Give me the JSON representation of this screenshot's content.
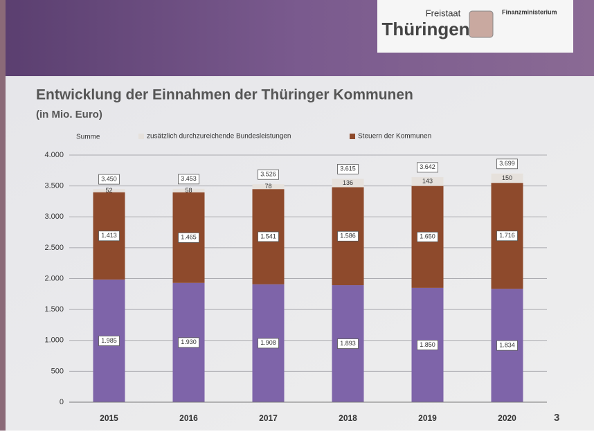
{
  "header": {
    "brand_small": "Freistaat",
    "brand": "Thüringen",
    "ministry": "Finanzministerium"
  },
  "slide_number": "3",
  "chart_data": {
    "type": "stacked_bar",
    "title": "Entwicklung der Einnahmen der Thüringer Kommunen",
    "subtitle": "(in Mio. Euro)",
    "categories": [
      "2015",
      "2016",
      "2017",
      "2018",
      "2019",
      "2020"
    ],
    "series": [
      {
        "color": "#7e64a9",
        "values": [
          1985,
          1930,
          1908,
          1893,
          1850,
          1834
        ],
        "value_labels": [
          "1.985",
          "1.930",
          "1.908",
          "1.893",
          "1.850",
          "1.834"
        ]
      },
      {
        "name": "Steuern der Kommunen",
        "color": "#8e4a2c",
        "values": [
          1413,
          1465,
          1541,
          1586,
          1650,
          1716
        ],
        "value_labels": [
          "1.413",
          "1.465",
          "1.541",
          "1.586",
          "1.650",
          "1.716"
        ]
      },
      {
        "name": "zusätzlich durchzureichende Bundesleistungen",
        "color": "#e6e1dc",
        "values": [
          52,
          58,
          78,
          136,
          143,
          150
        ]
      }
    ],
    "totals": {
      "name": "Summe",
      "values": [
        3450,
        3453,
        3526,
        3615,
        3642,
        3699
      ],
      "value_labels": [
        "3.450",
        "3.453",
        "3.526",
        "3.615",
        "3.642",
        "3.699"
      ]
    },
    "ylim": [
      0,
      4000
    ],
    "yticks": [
      0,
      500,
      {
        "value": 1000,
        "label": "1.000"
      },
      {
        "value": 1500,
        "label": "1.500"
      },
      {
        "value": 2000,
        "label": "2.000"
      },
      {
        "value": 2500,
        "label": "2.500"
      },
      {
        "value": 3000,
        "label": "3.000"
      },
      {
        "value": 3500,
        "label": "3.500"
      },
      {
        "value": 4000,
        "label": "4.000"
      }
    ],
    "grid": true
  }
}
